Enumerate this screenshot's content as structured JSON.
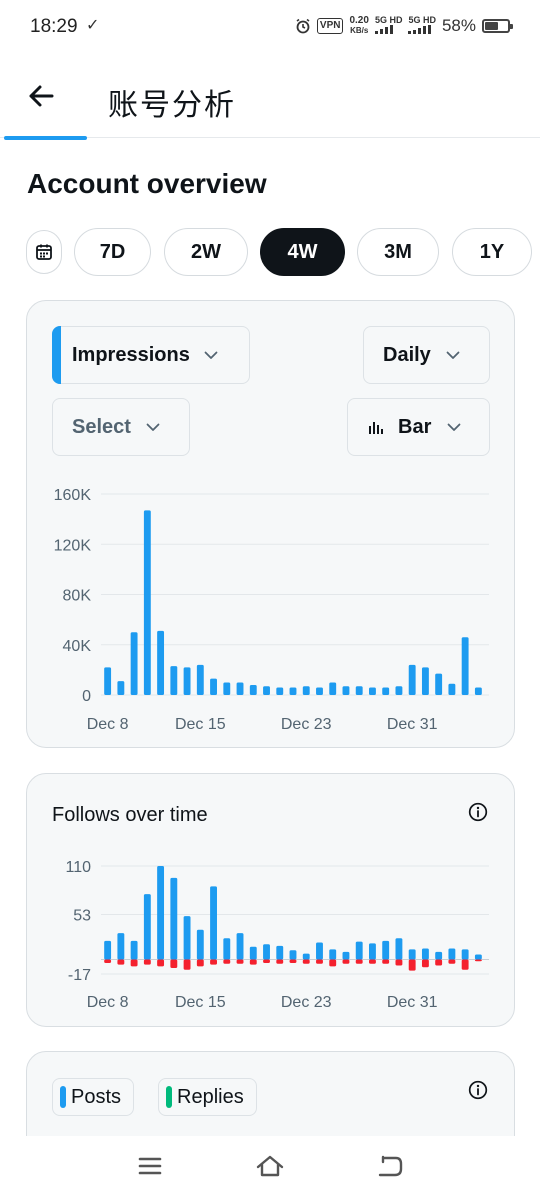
{
  "status_bar": {
    "time": "18:29",
    "check": "✓",
    "vpn": "VPN",
    "speed_value": "0.20",
    "speed_unit": "KB/s",
    "sig1": "5G HD",
    "sig2": "5G HD",
    "battery_pct": "58%",
    "battery_level": 0.58
  },
  "header": {
    "title": "账号分析"
  },
  "overview": {
    "title": "Account overview",
    "ranges": [
      "7D",
      "2W",
      "4W",
      "3M",
      "1Y"
    ],
    "active_range": "4W"
  },
  "impressions_card": {
    "metric_dropdown": "Impressions",
    "interval_dropdown": "Daily",
    "compare_dropdown": "Select",
    "chart_type_dropdown": "Bar",
    "accent_color": "#1d9bf0"
  },
  "follows_card": {
    "title": "Follows over time"
  },
  "posts_card": {
    "legend": [
      {
        "label": "Posts",
        "color": "#1d9bf0"
      },
      {
        "label": "Replies",
        "color": "#00ba7c"
      }
    ]
  },
  "chart_data": [
    {
      "type": "bar",
      "x_tick_labels": [
        "Dec 8",
        "Dec 15",
        "Dec 23",
        "Dec 31"
      ],
      "y_tick_labels": [
        "160K",
        "120K",
        "80K",
        "40K",
        "0"
      ],
      "ylim": [
        0,
        160000
      ],
      "yticks": [
        160000,
        120000,
        80000,
        40000,
        0
      ],
      "xtick_index": [
        0,
        7,
        15,
        23
      ],
      "grid": true,
      "color": "#1d9bf0",
      "series": [
        {
          "values": [
            22000,
            11000,
            50000,
            147000,
            51000,
            23000,
            22000,
            24000,
            13000,
            10000,
            10000,
            8000,
            7000,
            6000,
            6000,
            7000,
            6000,
            10000,
            7000,
            7000,
            6000,
            6000,
            7000,
            24000,
            22000,
            17000,
            9000,
            46000,
            6000
          ]
        }
      ]
    },
    {
      "type": "bar",
      "x_tick_labels": [
        "Dec 8",
        "Dec 15",
        "Dec 23",
        "Dec 31"
      ],
      "y_tick_labels": [
        "110",
        "53",
        "-17"
      ],
      "ylim": [
        -17,
        110
      ],
      "yticks": [
        110,
        53,
        -17
      ],
      "xtick_index": [
        0,
        7,
        15,
        23
      ],
      "grid": true,
      "series": [
        {
          "color": "#1d9bf0",
          "values": [
            22,
            31,
            22,
            77,
            110,
            96,
            51,
            35,
            86,
            25,
            31,
            15,
            18,
            16,
            11,
            7,
            20,
            12,
            9,
            21,
            19,
            22,
            25,
            12,
            13,
            9,
            13,
            12,
            6
          ]
        },
        {
          "color": "#f4212e",
          "values": [
            -4,
            -6,
            -8,
            -6,
            -8,
            -10,
            -12,
            -8,
            -6,
            -5,
            -5,
            -6,
            -4,
            -5,
            -4,
            -5,
            -5,
            -8,
            -5,
            -5,
            -5,
            -5,
            -7,
            -13,
            -9,
            -7,
            -5,
            -12,
            -2
          ]
        }
      ]
    }
  ]
}
